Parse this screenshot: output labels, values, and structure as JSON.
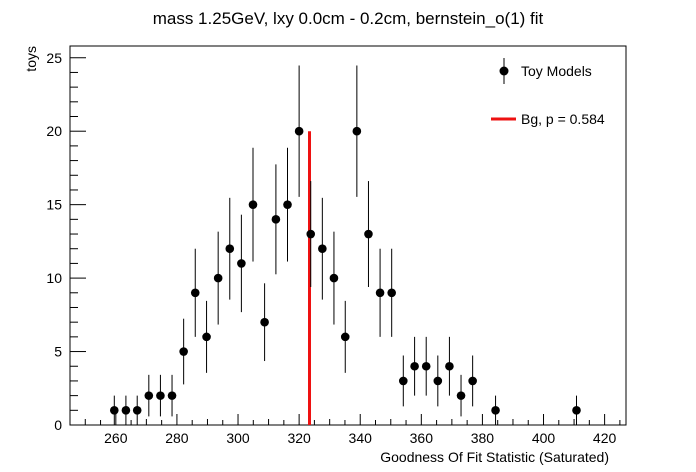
{
  "chart_data": {
    "type": "scatter",
    "title": "mass 1.25GeV, lxy 0.0cm - 0.2cm, bernstein_o(1) fit",
    "xlabel": "Goodness Of Fit Statistic (Saturated)",
    "ylabel": "toys",
    "xlim": [
      245,
      427
    ],
    "ylim": [
      0,
      25.8
    ],
    "x_ticks": [
      260,
      280,
      300,
      320,
      340,
      360,
      380,
      400,
      420
    ],
    "y_ticks": [
      0,
      5,
      10,
      15,
      20,
      25
    ],
    "grid": false,
    "legend_position": "top-right",
    "series": [
      {
        "name": "Toy Models",
        "type": "points-with-errors",
        "color": "#000000",
        "points": [
          {
            "x": 259.5,
            "y": 1
          },
          {
            "x": 263.3,
            "y": 1
          },
          {
            "x": 267.0,
            "y": 1
          },
          {
            "x": 270.8,
            "y": 2
          },
          {
            "x": 274.6,
            "y": 2
          },
          {
            "x": 278.4,
            "y": 2
          },
          {
            "x": 282.2,
            "y": 5
          },
          {
            "x": 286.0,
            "y": 9
          },
          {
            "x": 289.7,
            "y": 6
          },
          {
            "x": 293.5,
            "y": 10
          },
          {
            "x": 297.3,
            "y": 12
          },
          {
            "x": 301.1,
            "y": 11
          },
          {
            "x": 304.9,
            "y": 15
          },
          {
            "x": 308.7,
            "y": 7
          },
          {
            "x": 312.4,
            "y": 14
          },
          {
            "x": 316.2,
            "y": 15
          },
          {
            "x": 320.0,
            "y": 20
          },
          {
            "x": 323.8,
            "y": 13
          },
          {
            "x": 327.6,
            "y": 12
          },
          {
            "x": 331.4,
            "y": 10
          },
          {
            "x": 335.1,
            "y": 6
          },
          {
            "x": 338.9,
            "y": 20
          },
          {
            "x": 342.7,
            "y": 13
          },
          {
            "x": 346.5,
            "y": 9
          },
          {
            "x": 350.3,
            "y": 9
          },
          {
            "x": 354.1,
            "y": 3
          },
          {
            "x": 357.8,
            "y": 4
          },
          {
            "x": 361.6,
            "y": 4
          },
          {
            "x": 365.4,
            "y": 3
          },
          {
            "x": 369.2,
            "y": 4
          },
          {
            "x": 373.0,
            "y": 2
          },
          {
            "x": 376.8,
            "y": 3
          },
          {
            "x": 384.3,
            "y": 1
          },
          {
            "x": 410.8,
            "y": 1
          }
        ]
      },
      {
        "name": "Bg, p = 0.584",
        "type": "vertical-line",
        "color": "#ee1111",
        "x": 323.4,
        "y_top": 20
      }
    ]
  }
}
